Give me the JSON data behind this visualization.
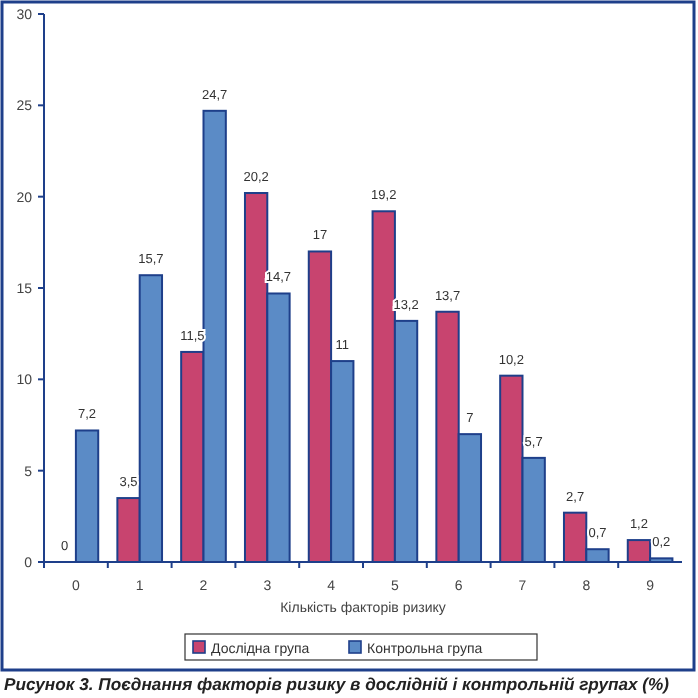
{
  "chart_data": {
    "type": "bar",
    "title": "Рисунок 3. Поєднання факторів ризику в дослідній і контрольній групах (%)",
    "xlabel": "Кількість факторів ризику",
    "categories": [
      "0",
      "1",
      "2",
      "3",
      "4",
      "5",
      "6",
      "7",
      "8",
      "9"
    ],
    "series": [
      {
        "name": "Дослідна група",
        "color": "#c8446f",
        "values": [
          0,
          3.5,
          11.5,
          20.2,
          17,
          19.2,
          13.7,
          10.2,
          2.7,
          1.2
        ],
        "value_labels": [
          "0",
          "3,5",
          "11,5",
          "20,2",
          "17",
          "19,2",
          "13,7",
          "10,2",
          "2,7",
          "1,2"
        ]
      },
      {
        "name": "Контрольна група",
        "color": "#5b8bc6",
        "values": [
          7.2,
          15.7,
          24.7,
          14.7,
          11,
          13.2,
          7,
          5.7,
          0.7,
          0.2
        ],
        "value_labels": [
          "7,2",
          "15,7",
          "24,7",
          "14,7",
          "11",
          "13,2",
          "7",
          "5,7",
          "0,7",
          "0,2"
        ]
      }
    ],
    "ylim": [
      0,
      30
    ],
    "yticks": [
      0,
      5,
      10,
      15,
      20,
      25,
      30
    ],
    "legend": "bottom"
  }
}
